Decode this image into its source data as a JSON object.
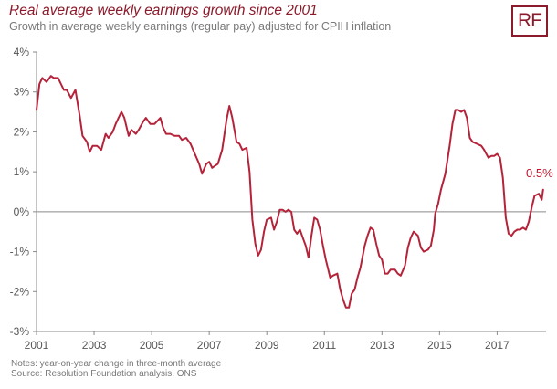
{
  "header": {
    "title": "Real average weekly earnings growth since 2001",
    "subtitle": "Growth in average weekly earnings (regular pay) adjusted for CPIH inflation"
  },
  "logo": {
    "text": "RF",
    "color": "#8b1a2b"
  },
  "footer": {
    "notes": "Notes: year-on-year change in three-month average",
    "source": "Source: Resolution Foundation analysis, ONS"
  },
  "chart_data": {
    "type": "line",
    "title": "Real average weekly earnings growth since 2001",
    "subtitle": "Growth in average weekly earnings (regular pay) adjusted for CPIH inflation",
    "xlabel": "",
    "ylabel": "",
    "xlim": [
      2001,
      2018.7
    ],
    "ylim": [
      -3,
      4
    ],
    "y_ticks": [
      4,
      3,
      2,
      1,
      0,
      -1,
      -2,
      -3
    ],
    "y_tick_labels": [
      "4%",
      "3%",
      "2%",
      "1%",
      "0%",
      "-1%",
      "-2%",
      "-3%"
    ],
    "x_ticks": [
      2001,
      2003,
      2005,
      2007,
      2009,
      2011,
      2013,
      2015,
      2017
    ],
    "x_tick_labels": [
      "2001",
      "2003",
      "2005",
      "2007",
      "2009",
      "2011",
      "2013",
      "2015",
      "2017"
    ],
    "grid": false,
    "line_color": "#b5233a",
    "annotation": {
      "text": "0.5%",
      "x": 2018.6,
      "y": 0.5,
      "color": "#c0162f"
    },
    "series": [
      {
        "points": [
          [
            2001.0,
            2.55
          ],
          [
            2001.1,
            3.2
          ],
          [
            2001.2,
            3.35
          ],
          [
            2001.35,
            3.25
          ],
          [
            2001.5,
            3.4
          ],
          [
            2001.6,
            3.35
          ],
          [
            2001.75,
            3.35
          ],
          [
            2001.85,
            3.2
          ],
          [
            2001.95,
            3.05
          ],
          [
            2002.05,
            3.05
          ],
          [
            2002.2,
            2.85
          ],
          [
            2002.35,
            3.05
          ],
          [
            2002.5,
            2.4
          ],
          [
            2002.6,
            1.9
          ],
          [
            2002.75,
            1.75
          ],
          [
            2002.85,
            1.5
          ],
          [
            2002.95,
            1.65
          ],
          [
            2003.1,
            1.65
          ],
          [
            2003.25,
            1.55
          ],
          [
            2003.4,
            1.95
          ],
          [
            2003.5,
            1.85
          ],
          [
            2003.65,
            2.0
          ],
          [
            2003.75,
            2.2
          ],
          [
            2003.85,
            2.35
          ],
          [
            2003.95,
            2.5
          ],
          [
            2004.05,
            2.35
          ],
          [
            2004.2,
            1.9
          ],
          [
            2004.3,
            2.05
          ],
          [
            2004.45,
            1.95
          ],
          [
            2004.55,
            2.05
          ],
          [
            2004.7,
            2.25
          ],
          [
            2004.8,
            2.35
          ],
          [
            2004.95,
            2.2
          ],
          [
            2005.1,
            2.2
          ],
          [
            2005.3,
            2.35
          ],
          [
            2005.4,
            2.1
          ],
          [
            2005.5,
            1.95
          ],
          [
            2005.65,
            1.95
          ],
          [
            2005.8,
            1.9
          ],
          [
            2005.95,
            1.9
          ],
          [
            2006.05,
            1.8
          ],
          [
            2006.2,
            1.85
          ],
          [
            2006.35,
            1.7
          ],
          [
            2006.5,
            1.45
          ],
          [
            2006.65,
            1.2
          ],
          [
            2006.75,
            0.95
          ],
          [
            2006.9,
            1.2
          ],
          [
            2007.0,
            1.25
          ],
          [
            2007.1,
            1.1
          ],
          [
            2007.3,
            1.2
          ],
          [
            2007.45,
            1.55
          ],
          [
            2007.6,
            2.3
          ],
          [
            2007.7,
            2.65
          ],
          [
            2007.8,
            2.35
          ],
          [
            2007.95,
            1.75
          ],
          [
            2008.05,
            1.7
          ],
          [
            2008.15,
            1.55
          ],
          [
            2008.3,
            1.6
          ],
          [
            2008.4,
            1.0
          ],
          [
            2008.5,
            -0.2
          ],
          [
            2008.6,
            -0.8
          ],
          [
            2008.7,
            -1.1
          ],
          [
            2008.8,
            -0.95
          ],
          [
            2008.9,
            -0.5
          ],
          [
            2009.0,
            -0.2
          ],
          [
            2009.15,
            -0.15
          ],
          [
            2009.25,
            -0.45
          ],
          [
            2009.35,
            -0.25
          ],
          [
            2009.45,
            0.05
          ],
          [
            2009.55,
            0.05
          ],
          [
            2009.65,
            0.0
          ],
          [
            2009.75,
            0.05
          ],
          [
            2009.85,
            0.0
          ],
          [
            2009.95,
            -0.45
          ],
          [
            2010.05,
            -0.55
          ],
          [
            2010.15,
            -0.45
          ],
          [
            2010.25,
            -0.65
          ],
          [
            2010.35,
            -0.85
          ],
          [
            2010.45,
            -1.15
          ],
          [
            2010.55,
            -0.6
          ],
          [
            2010.65,
            -0.15
          ],
          [
            2010.75,
            -0.2
          ],
          [
            2010.85,
            -0.45
          ],
          [
            2010.95,
            -0.85
          ],
          [
            2011.05,
            -1.2
          ],
          [
            2011.2,
            -1.65
          ],
          [
            2011.3,
            -1.6
          ],
          [
            2011.45,
            -1.55
          ],
          [
            2011.55,
            -1.95
          ],
          [
            2011.65,
            -2.2
          ],
          [
            2011.75,
            -2.4
          ],
          [
            2011.85,
            -2.4
          ],
          [
            2011.95,
            -2.05
          ],
          [
            2012.05,
            -1.95
          ],
          [
            2012.15,
            -1.65
          ],
          [
            2012.25,
            -1.4
          ],
          [
            2012.4,
            -0.85
          ],
          [
            2012.5,
            -0.6
          ],
          [
            2012.6,
            -0.4
          ],
          [
            2012.7,
            -0.45
          ],
          [
            2012.8,
            -0.8
          ],
          [
            2012.9,
            -1.1
          ],
          [
            2013.0,
            -1.2
          ],
          [
            2013.1,
            -1.55
          ],
          [
            2013.2,
            -1.55
          ],
          [
            2013.3,
            -1.45
          ],
          [
            2013.45,
            -1.45
          ],
          [
            2013.55,
            -1.55
          ],
          [
            2013.65,
            -1.6
          ],
          [
            2013.8,
            -1.35
          ],
          [
            2013.9,
            -0.9
          ],
          [
            2014.0,
            -0.65
          ],
          [
            2014.1,
            -0.5
          ],
          [
            2014.25,
            -0.6
          ],
          [
            2014.35,
            -0.9
          ],
          [
            2014.45,
            -1.0
          ],
          [
            2014.6,
            -0.95
          ],
          [
            2014.7,
            -0.85
          ],
          [
            2014.8,
            -0.45
          ],
          [
            2014.85,
            -0.05
          ],
          [
            2014.95,
            0.2
          ],
          [
            2015.05,
            0.55
          ],
          [
            2015.2,
            0.95
          ],
          [
            2015.35,
            1.65
          ],
          [
            2015.45,
            2.2
          ],
          [
            2015.55,
            2.55
          ],
          [
            2015.65,
            2.55
          ],
          [
            2015.75,
            2.5
          ],
          [
            2015.85,
            2.55
          ],
          [
            2015.95,
            2.35
          ],
          [
            2016.05,
            1.85
          ],
          [
            2016.15,
            1.75
          ],
          [
            2016.3,
            1.7
          ],
          [
            2016.45,
            1.65
          ],
          [
            2016.55,
            1.55
          ],
          [
            2016.7,
            1.35
          ],
          [
            2016.8,
            1.4
          ],
          [
            2016.9,
            1.4
          ],
          [
            2017.0,
            1.45
          ],
          [
            2017.1,
            1.35
          ],
          [
            2017.2,
            0.85
          ],
          [
            2017.3,
            -0.15
          ],
          [
            2017.4,
            -0.55
          ],
          [
            2017.5,
            -0.6
          ],
          [
            2017.6,
            -0.5
          ],
          [
            2017.7,
            -0.45
          ],
          [
            2017.8,
            -0.45
          ],
          [
            2017.9,
            -0.4
          ],
          [
            2018.0,
            -0.45
          ],
          [
            2018.1,
            -0.25
          ],
          [
            2018.2,
            0.1
          ],
          [
            2018.3,
            0.4
          ],
          [
            2018.45,
            0.45
          ],
          [
            2018.55,
            0.3
          ],
          [
            2018.6,
            0.55
          ]
        ]
      }
    ]
  }
}
